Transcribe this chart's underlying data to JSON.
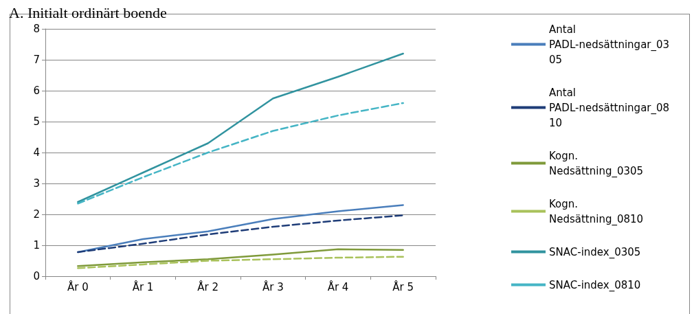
{
  "chart_data": {
    "type": "line",
    "title": "A. Initialt ordinärt boende",
    "categories": [
      "År 0",
      "År 1",
      "År 2",
      "År 3",
      "År 4",
      "År 5"
    ],
    "ylim": [
      0,
      8
    ],
    "yticks": [
      0,
      1,
      2,
      3,
      4,
      5,
      6,
      7,
      8
    ],
    "grid": "y",
    "legend": "right",
    "marker": "none",
    "series": [
      {
        "name": "Antal PADL-nedsättningar_0305",
        "color": "#4a7ebb",
        "line_style": "solid",
        "values": [
          0.78,
          1.2,
          1.45,
          1.85,
          2.1,
          2.3
        ]
      },
      {
        "name": "Antal PADL-nedsättningar_0810",
        "color": "#1f3d78",
        "line_style": "dashed",
        "values": [
          0.78,
          1.05,
          1.35,
          1.6,
          1.8,
          1.97
        ]
      },
      {
        "name": "Kogn. Nedsättning_0305",
        "color": "#7f9a3a",
        "line_style": "solid",
        "values": [
          0.33,
          0.45,
          0.55,
          0.7,
          0.87,
          0.85
        ]
      },
      {
        "name": "Kogn. Nedsättning_0810",
        "color": "#a9c25b",
        "line_style": "dashed",
        "values": [
          0.26,
          0.38,
          0.5,
          0.55,
          0.6,
          0.63
        ]
      },
      {
        "name": "SNAC-index_0305",
        "color": "#31939f",
        "line_style": "solid",
        "values": [
          2.4,
          3.35,
          4.3,
          5.75,
          6.45,
          7.2
        ]
      },
      {
        "name": "SNAC-index_0810",
        "color": "#45b5c5",
        "line_style": "dashed",
        "values": [
          2.35,
          3.2,
          4.0,
          4.7,
          5.2,
          5.6
        ]
      }
    ]
  }
}
